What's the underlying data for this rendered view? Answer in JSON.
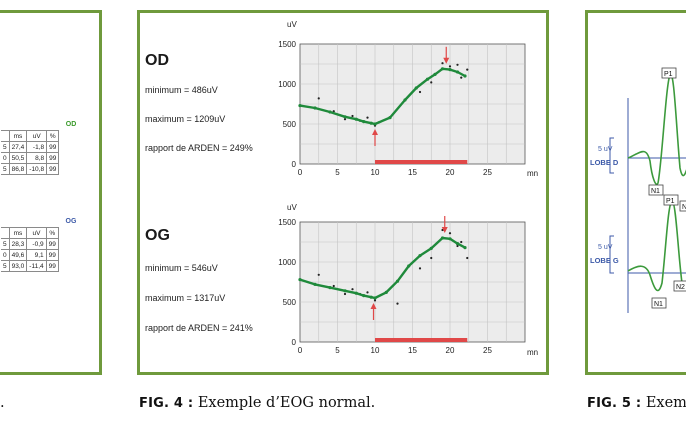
{
  "left_panel": {
    "tables": [
      {
        "title": "OD",
        "headers": [
          "ms",
          "uV",
          "%"
        ],
        "first_col": [
          "5",
          "0",
          "5"
        ],
        "rows": [
          [
            "27,4",
            "-1,8",
            "99"
          ],
          [
            "50,5",
            "8,8",
            "99"
          ],
          [
            "86,8",
            "-10,8",
            "99"
          ]
        ]
      },
      {
        "title": "OG",
        "headers": [
          "ms",
          "uV",
          "%"
        ],
        "first_col": [
          "5",
          "0",
          "5"
        ],
        "rows": [
          [
            "28,3",
            "-0,9",
            "99"
          ],
          [
            "49,6",
            "9,1",
            "99"
          ],
          [
            "93,0",
            "-11,4",
            "99"
          ]
        ]
      }
    ],
    "caption_tail": "."
  },
  "figures": {
    "fig4": {
      "label": "FIG. 4 :",
      "text": " Exemple d’EOG normal."
    },
    "fig5": {
      "label": "FIG. 5 :",
      "text": " Exem"
    }
  },
  "right_panel": {
    "scale_1": "5 uV",
    "lobe_1": "LOBE D",
    "scale_2": "5 uV",
    "lobe_2": "LOBE G",
    "markers": [
      "P1",
      "N1",
      "P1",
      "N2",
      "N1",
      "N"
    ],
    "colors": {
      "trace": "#3c9a3c",
      "axis": "#3d5aa8"
    }
  },
  "colors": {
    "frame": "#6f9a3c",
    "line": "#1f8a3b",
    "stimulus": "#e04848",
    "grid_bg": "#ececec"
  },
  "chart_data": [
    {
      "type": "line",
      "title": "OD",
      "stats": [
        "minimum = 486uV",
        "maximum = 1209uV",
        "rapport de ARDEN = 249%"
      ],
      "ylabel": "uV",
      "xlabel": "mn",
      "xlim": [
        0,
        30
      ],
      "ylim": [
        0,
        1500
      ],
      "x_ticks": [
        0,
        5,
        10,
        15,
        20,
        25
      ],
      "y_ticks": [
        0,
        500,
        1000,
        1500
      ],
      "series": [
        {
          "x": [
            0,
            2,
            4,
            6,
            7.5,
            8.5,
            9.5,
            10,
            12,
            14,
            15.5,
            17,
            18,
            19,
            20,
            21,
            22
          ],
          "y": [
            730,
            700,
            650,
            590,
            560,
            530,
            510,
            500,
            580,
            800,
            950,
            1060,
            1120,
            1190,
            1180,
            1150,
            1100
          ]
        }
      ],
      "minimum_x": 10,
      "maximum_x": 19.5,
      "scatter": {
        "x": [
          2.5,
          4.5,
          6,
          7,
          8,
          9,
          10,
          10.5,
          16,
          17.5,
          19,
          20,
          21,
          21.5,
          22.3
        ],
        "y": [
          820,
          660,
          560,
          600,
          540,
          580,
          480,
          520,
          900,
          1020,
          1260,
          1220,
          1240,
          1080,
          1180
        ]
      },
      "light_period": [
        10,
        22.3
      ]
    },
    {
      "type": "line",
      "title": "OG",
      "stats": [
        "minimum = 546uV",
        "maximum = 1317uV",
        "rapport de ARDEN = 241%"
      ],
      "ylabel": "uV",
      "xlabel": "mn",
      "xlim": [
        0,
        30
      ],
      "ylim": [
        0,
        1500
      ],
      "x_ticks": [
        0,
        5,
        10,
        15,
        20,
        25
      ],
      "y_ticks": [
        0,
        500,
        1000,
        1500
      ],
      "series": [
        {
          "x": [
            0,
            2,
            4,
            6,
            7.5,
            8.5,
            9.5,
            10,
            11.5,
            13,
            14.5,
            16,
            17.5,
            19,
            20,
            21,
            22
          ],
          "y": [
            780,
            720,
            680,
            640,
            610,
            580,
            560,
            550,
            620,
            760,
            950,
            1080,
            1170,
            1300,
            1290,
            1230,
            1180
          ]
        }
      ],
      "minimum_x": 9.8,
      "maximum_x": 19.3,
      "scatter": {
        "x": [
          2.5,
          4.5,
          6,
          7,
          8,
          9,
          10,
          13,
          16,
          17.5,
          19,
          20,
          21,
          21.5,
          22.3
        ],
        "y": [
          840,
          700,
          600,
          660,
          600,
          620,
          520,
          480,
          920,
          1050,
          1400,
          1360,
          1200,
          1250,
          1050
        ]
      },
      "light_period": [
        10,
        22.3
      ]
    }
  ]
}
